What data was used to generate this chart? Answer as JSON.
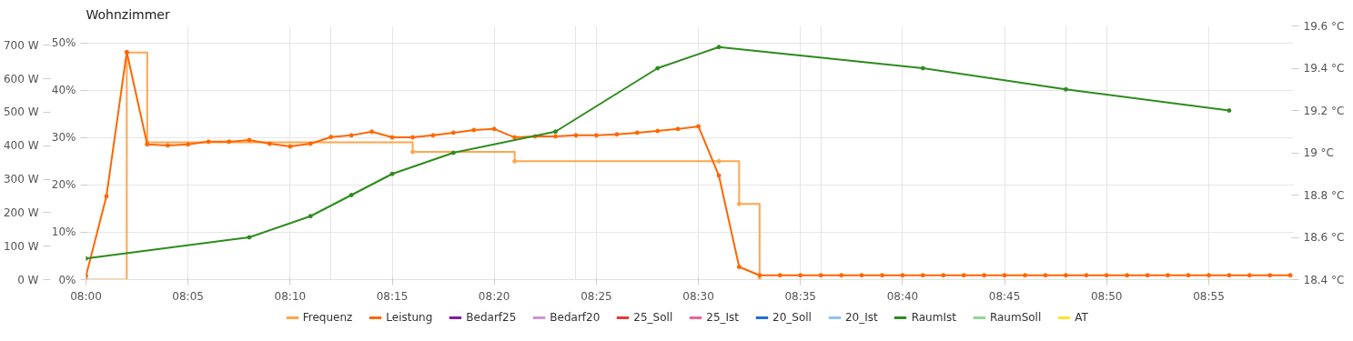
{
  "chart_data": {
    "type": "line",
    "title": "Wohnzimmer",
    "xlim": [
      8.0,
      8.9858
    ],
    "xticks": [
      {
        "value": 8.0,
        "label": "08:00"
      },
      {
        "value": 8.0833,
        "label": "08:05"
      },
      {
        "value": 8.1667,
        "label": "08:10"
      },
      {
        "value": 8.25,
        "label": "08:15"
      },
      {
        "value": 8.3333,
        "label": "08:20"
      },
      {
        "value": 8.4167,
        "label": "08:25"
      },
      {
        "value": 8.5,
        "label": "08:30"
      },
      {
        "value": 8.5833,
        "label": "08:35"
      },
      {
        "value": 8.6667,
        "label": "08:40"
      },
      {
        "value": 8.75,
        "label": "08:45"
      },
      {
        "value": 8.8333,
        "label": "08:50"
      },
      {
        "value": 8.9167,
        "label": "08:55"
      }
    ],
    "ylim": [
      0,
      758
    ],
    "yticks": [
      {
        "value": 0,
        "label": "0 W"
      },
      {
        "value": 100,
        "label": "100 W"
      },
      {
        "value": 200,
        "label": "200 W"
      },
      {
        "value": 300,
        "label": "300 W"
      },
      {
        "value": 400,
        "label": "400 W"
      },
      {
        "value": 500,
        "label": "500 W"
      },
      {
        "value": 600,
        "label": "600 W"
      },
      {
        "value": 700,
        "label": "700 W"
      }
    ],
    "y2lim": [
      0,
      53.6
    ],
    "y2ticks": [
      {
        "value": 0,
        "label": "0%"
      },
      {
        "value": 10,
        "label": "10%"
      },
      {
        "value": 20,
        "label": "20%"
      },
      {
        "value": 30,
        "label": "30%"
      },
      {
        "value": 40,
        "label": "40%"
      },
      {
        "value": 50,
        "label": "50%"
      }
    ],
    "y3lim": [
      18.4,
      19.6
    ],
    "y3ticks": [
      {
        "value": 18.4,
        "label": "18.4 °C"
      },
      {
        "value": 18.6,
        "label": "18.6 °C"
      },
      {
        "value": 18.8,
        "label": "18.8 °C"
      },
      {
        "value": 19.0,
        "label": "19 °C"
      },
      {
        "value": 19.2,
        "label": "19.2 °C"
      },
      {
        "value": 19.4,
        "label": "19.4 °C"
      },
      {
        "value": 19.6,
        "label": "19.6 °C"
      }
    ],
    "grid": true,
    "legend": "bottom",
    "marker": "circle",
    "line_style": "solid",
    "series": [
      {
        "name": "Frequenz",
        "type": "step",
        "axis": "y2",
        "color": "#ffa64d",
        "x": [
          8.0,
          8.0333,
          8.05,
          8.2667,
          8.35,
          8.5167,
          8.5333,
          8.55
        ],
        "values": [
          0,
          48,
          29,
          27,
          25,
          25,
          16,
          0
        ]
      },
      {
        "name": "Leistung",
        "axis": "y",
        "color": "#ff6600",
        "x": [
          8.0,
          8.0167,
          8.0333,
          8.05,
          8.0667,
          8.0833,
          8.1,
          8.1167,
          8.1333,
          8.15,
          8.1667,
          8.1833,
          8.2,
          8.2167,
          8.2333,
          8.25,
          8.2667,
          8.2833,
          8.3,
          8.3167,
          8.3333,
          8.35,
          8.3667,
          8.3833,
          8.4,
          8.4167,
          8.4333,
          8.45,
          8.4667,
          8.4833,
          8.5,
          8.5167,
          8.5333,
          8.55,
          8.5667,
          8.5833,
          8.6,
          8.6167,
          8.6333,
          8.65,
          8.6667,
          8.6833,
          8.7,
          8.7167,
          8.7333,
          8.75,
          8.7667,
          8.7833,
          8.8,
          8.8167,
          8.8333,
          8.85,
          8.8667,
          8.8833,
          8.9,
          8.9167,
          8.9333,
          8.95,
          8.9667,
          8.9833
        ],
        "values": [
          11,
          249,
          680,
          404,
          401,
          404,
          412,
          412,
          417,
          406,
          398,
          406,
          426,
          431,
          442,
          425,
          425,
          431,
          439,
          447,
          450,
          425,
          428,
          428,
          431,
          431,
          434,
          439,
          444,
          450,
          458,
          311,
          38,
          13,
          13,
          13,
          13,
          13,
          13,
          13,
          13,
          13,
          13,
          13,
          13,
          13,
          13,
          13,
          13,
          13,
          13,
          13,
          13,
          13,
          13,
          13,
          13,
          13,
          13,
          13
        ]
      },
      {
        "name": "Bedarf25",
        "color": "#7b1fa2"
      },
      {
        "name": "Bedarf20",
        "color": "#ce93d8"
      },
      {
        "name": "25_Soll",
        "color": "#e53935"
      },
      {
        "name": "25_Ist",
        "color": "#f06292"
      },
      {
        "name": "20_Soll",
        "color": "#1e6fd9"
      },
      {
        "name": "20_Ist",
        "color": "#90c2f9"
      },
      {
        "name": "RaumIst",
        "axis": "y3",
        "color": "#2e8b1e",
        "x": [
          8.0,
          8.1333,
          8.1833,
          8.2167,
          8.25,
          8.3,
          8.3833,
          8.4667,
          8.5167,
          8.6833,
          8.8,
          8.9333
        ],
        "values": [
          18.5,
          18.6,
          18.7,
          18.8,
          18.9,
          19.0,
          19.1,
          19.4,
          19.5,
          19.4,
          19.3,
          19.2
        ]
      },
      {
        "name": "RaumSoll",
        "color": "#8fd694"
      },
      {
        "name": "AT",
        "color": "#ffe033"
      }
    ]
  }
}
